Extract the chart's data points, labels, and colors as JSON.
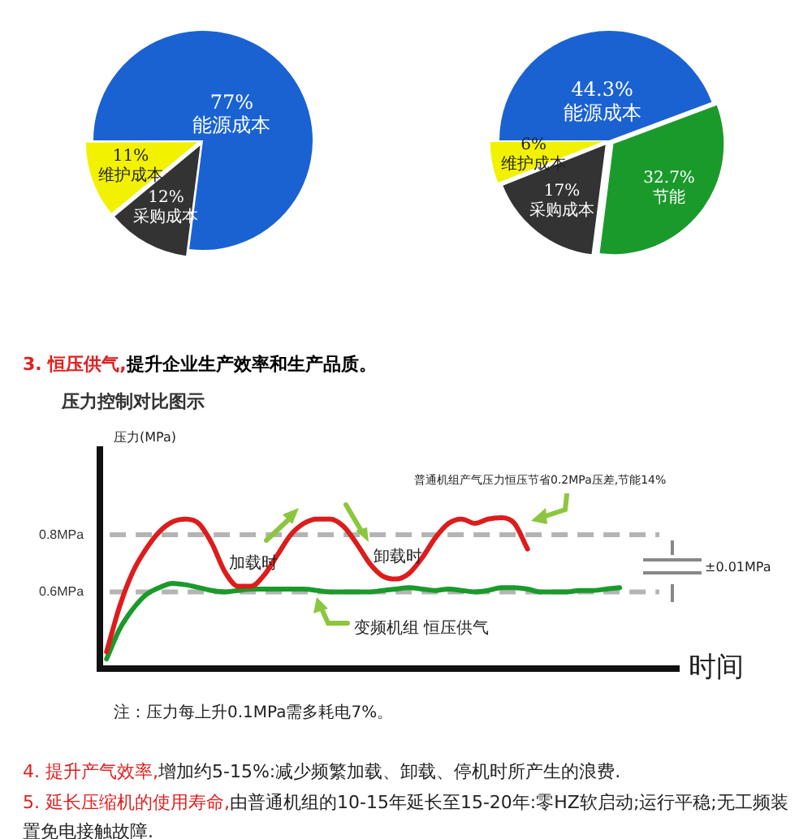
{
  "chart_data": [
    {
      "type": "pie",
      "categories": [
        "能源成本",
        "采购成本",
        "维护成本"
      ],
      "values": [
        77,
        12,
        11
      ],
      "colors": [
        "#1a62d2",
        "#333333",
        "#f2f200"
      ],
      "value_labels": [
        "77%",
        "12%",
        "11%"
      ]
    },
    {
      "type": "pie",
      "categories": [
        "能源成本",
        "节能",
        "采购成本",
        "维护成本"
      ],
      "values": [
        44.3,
        32.7,
        17,
        6
      ],
      "colors": [
        "#1a62d2",
        "#1b9a2c",
        "#333333",
        "#f2f200"
      ],
      "value_labels": [
        "44.3%",
        "32.7%",
        "17%",
        "6%"
      ]
    },
    {
      "type": "line",
      "title": "3. 恒压供气,提升企业生产效率和生产品质。",
      "subtitle": "压力控制对比图示",
      "ylabel": "压力(MPa)",
      "xlabel": "时间",
      "categories": [
        null,
        null,
        null,
        null,
        null,
        null,
        null,
        null,
        null,
        null,
        null,
        null,
        null,
        null,
        null,
        null,
        null,
        null,
        null,
        null,
        null,
        null,
        null,
        null,
        null,
        null,
        null,
        null,
        null,
        null,
        null,
        null,
        null,
        null,
        null,
        null,
        null,
        null,
        null,
        null,
        null,
        null,
        null,
        null
      ],
      "series": [
        {
          "color": "#dd1c1c",
          "values": [
            0.39,
            0.55,
            0.67,
            0.75,
            0.81,
            0.845,
            0.855,
            0.84,
            0.77,
            0.67,
            0.62,
            0.62,
            0.66,
            0.73,
            0.8,
            0.84,
            0.855,
            0.855,
            0.83,
            0.77,
            0.7,
            0.655,
            0.645,
            0.665,
            0.72,
            0.79,
            0.84,
            0.855,
            0.84,
            0.855,
            0.86,
            0.84,
            0.75,
            null,
            null,
            null,
            null,
            null,
            null,
            null,
            null,
            null,
            null,
            null
          ]
        },
        {
          "color": "#1a9a2a",
          "values": [
            0.365,
            0.47,
            0.54,
            0.59,
            0.615,
            0.63,
            0.625,
            0.615,
            0.605,
            0.6,
            0.605,
            0.61,
            0.61,
            0.61,
            0.61,
            0.61,
            0.605,
            0.6,
            0.6,
            0.6,
            0.6,
            0.605,
            0.61,
            0.615,
            0.61,
            0.605,
            0.61,
            0.605,
            0.6,
            0.605,
            0.615,
            0.615,
            0.61,
            0.6,
            0.6,
            0.6,
            0.605,
            0.605,
            0.61,
            0.615,
            null,
            null,
            null,
            null
          ]
        }
      ],
      "ylim": [
        0.33,
        1.1
      ],
      "yticks": [
        {
          "value": 0.8,
          "label": "0.8MPa"
        },
        {
          "value": 0.6,
          "label": "0.6MPa"
        }
      ],
      "ref_lines": [
        {
          "axis": "y",
          "value": 0.8,
          "color": "#b4b4b4",
          "line_style": "dashed"
        },
        {
          "axis": "y",
          "value": 0.6,
          "color": "#b4b4b4",
          "line_style": "dashed"
        }
      ],
      "grid": false,
      "marker": "none",
      "line_style": "solid",
      "tick_labels": "y",
      "annotations": [
        "普通机组产气压力恒压节省0.2MPa压差,节能14%",
        "加载时",
        "卸载时",
        "变频机组  恒压供气",
        "±0.01MPa",
        "注：压力每上升0.1MPa需多耗电7%。",
        "4. 提升产气效率,增加约5-15%:减少频繁加载、卸载、停机时所产生的浪费.",
        "5. 延长压缩机的使用寿命,由普通机组的10-15年延长至15-20年:零HZ软启动;运行平稳;无工频装置免电接触故障."
      ]
    }
  ]
}
